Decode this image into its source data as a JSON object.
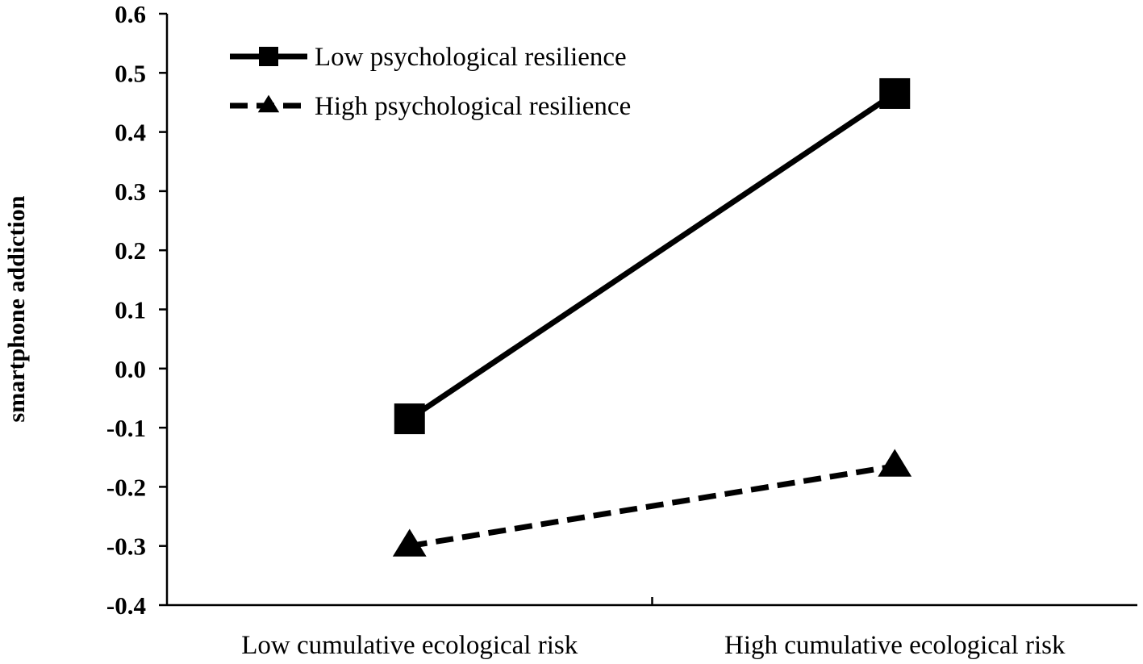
{
  "chart_data": {
    "type": "line",
    "title": "",
    "xlabel": "",
    "ylabel": "smartphone addiction",
    "categories": [
      "Low cumulative ecological risk",
      "High cumulative ecological risk"
    ],
    "ylim": [
      -0.4,
      0.6
    ],
    "yticks": [
      "0.6",
      "0.5",
      "0.4",
      "0.3",
      "0.2",
      "0.1",
      "0.0",
      "-0.1",
      "-0.2",
      "-0.3",
      "-0.4"
    ],
    "grid": false,
    "legend_position": "top-left",
    "series": [
      {
        "name": "Low psychological resilience",
        "values": [
          -0.085,
          0.465
        ],
        "line_style": "solid",
        "marker": "square",
        "color": "#000000"
      },
      {
        "name": "High psychological resilience",
        "values": [
          -0.3,
          -0.165
        ],
        "line_style": "dashed",
        "marker": "triangle",
        "color": "#000000"
      }
    ]
  }
}
